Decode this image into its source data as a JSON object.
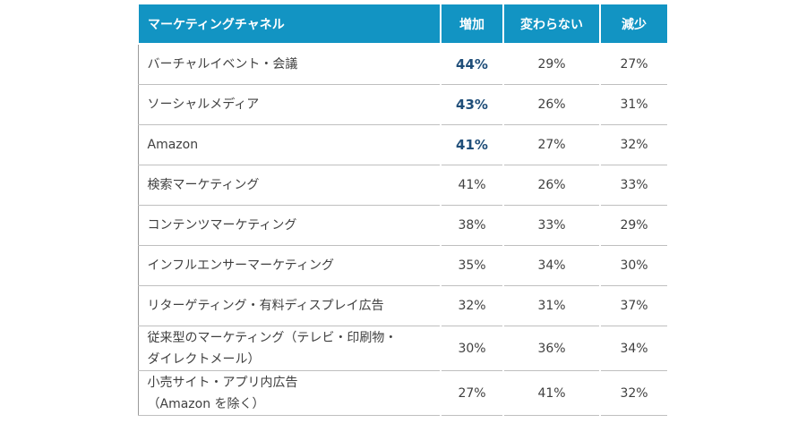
{
  "headers": [
    "マーケティングチャネル",
    "増加",
    "変わらない",
    "減少"
  ],
  "rows": [
    {
      "label": "バーチャルイベント・会議",
      "label2": "",
      "increase": "44%",
      "same": "29%",
      "decrease": "27%",
      "highlight": true
    },
    {
      "label": "ソーシャルメディア",
      "label2": "",
      "increase": "43%",
      "same": "26%",
      "decrease": "31%",
      "highlight": true
    },
    {
      "label": "Amazon",
      "label2": "",
      "increase": "41%",
      "same": "27%",
      "decrease": "32%",
      "highlight": true
    },
    {
      "label": "検索マーケティング",
      "label2": "",
      "increase": "41%",
      "same": "26%",
      "decrease": "33%",
      "highlight": false
    },
    {
      "label": "コンテンツマーケティング",
      "label2": "",
      "increase": "38%",
      "same": "33%",
      "decrease": "29%",
      "highlight": false
    },
    {
      "label": "インフルエンサーマーケティング",
      "label2": "",
      "increase": "35%",
      "same": "34%",
      "decrease": "30%",
      "highlight": false
    },
    {
      "label": "リターゲティング・有料ディスプレイ広告",
      "label2": "",
      "increase": "32%",
      "same": "31%",
      "decrease": "37%",
      "highlight": false
    },
    {
      "label": "従来型のマーケティング（テレビ・印刷物・",
      "label2": "ダイレクトメール）",
      "increase": "30%",
      "same": "36%",
      "decrease": "34%",
      "highlight": false
    },
    {
      "label": "小売サイト・アプリ内広告",
      "label2": "（Amazon を除く）",
      "increase": "27%",
      "same": "41%",
      "decrease": "32%",
      "highlight": false
    }
  ]
}
